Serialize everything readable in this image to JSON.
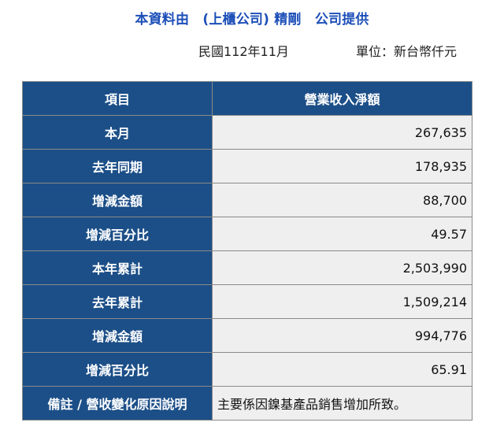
{
  "header": {
    "title": "本資料由　(上櫃公司) 精剛　公司提供",
    "date_text": "民國112年11月",
    "unit_text": "單位：新台幣仟元"
  },
  "table": {
    "column_headers": [
      "項目",
      "營業收入淨額"
    ],
    "rows": [
      {
        "label": "本月",
        "value": "267,635"
      },
      {
        "label": "去年同期",
        "value": "178,935"
      },
      {
        "label": "增減金額",
        "value": "88,700"
      },
      {
        "label": "增減百分比",
        "value": "49.57"
      },
      {
        "label": "本年累計",
        "value": "2,503,990"
      },
      {
        "label": "去年累計",
        "value": "1,509,214"
      },
      {
        "label": "增減金額",
        "value": "994,776"
      },
      {
        "label": "增減百分比",
        "value": "65.91"
      }
    ],
    "note_row": {
      "label": "備註 / 營收變化原因說明",
      "value": "主要係因鎳基產品銷售增加所致。"
    }
  }
}
